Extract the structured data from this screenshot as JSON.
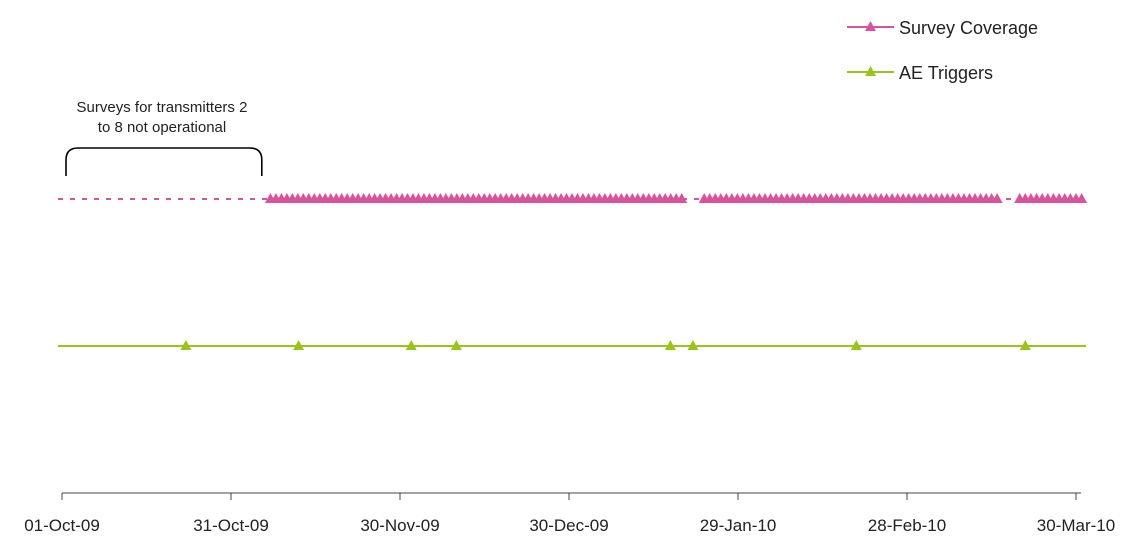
{
  "chart_data": {
    "type": "scatter",
    "title": "",
    "xlabel": "",
    "ylabel": "",
    "x_axis": {
      "type": "date",
      "range": [
        "2009-10-01",
        "2010-04-01"
      ],
      "tick_dates": [
        "2009-10-01",
        "2009-10-31",
        "2009-11-30",
        "2009-12-30",
        "2010-01-29",
        "2010-02-28",
        "2010-03-30"
      ],
      "tick_labels": [
        "01-Oct-09",
        "31-Oct-09",
        "30-Nov-09",
        "30-Dec-09",
        "29-Jan-10",
        "28-Feb-10",
        "30-Mar-10"
      ]
    },
    "grid": false,
    "legend": {
      "position": "top-right"
    },
    "series": [
      {
        "name": "Survey Coverage",
        "color": "#d9539a",
        "marker": "triangle",
        "row_line_style": "dashed",
        "covered_ranges": [
          [
            "2009-11-07",
            "2010-01-19"
          ],
          [
            "2010-01-23",
            "2010-03-16"
          ],
          [
            "2010-03-20",
            "2010-03-27"
          ],
          [
            "2010-03-28",
            "2010-03-31"
          ]
        ]
      },
      {
        "name": "AE Triggers",
        "color": "#9ac31c",
        "marker": "triangle",
        "row_line_style": "solid",
        "dates": [
          "2009-10-23",
          "2009-11-12",
          "2009-12-02",
          "2009-12-10",
          "2010-01-17",
          "2010-01-21",
          "2010-02-19",
          "2010-03-21"
        ]
      }
    ],
    "annotations": [
      {
        "text_lines": [
          "Surveys for transmitters 2",
          "to 8 not operational"
        ],
        "bracket_range": [
          "2009-10-01",
          "2009-11-06"
        ]
      }
    ]
  }
}
